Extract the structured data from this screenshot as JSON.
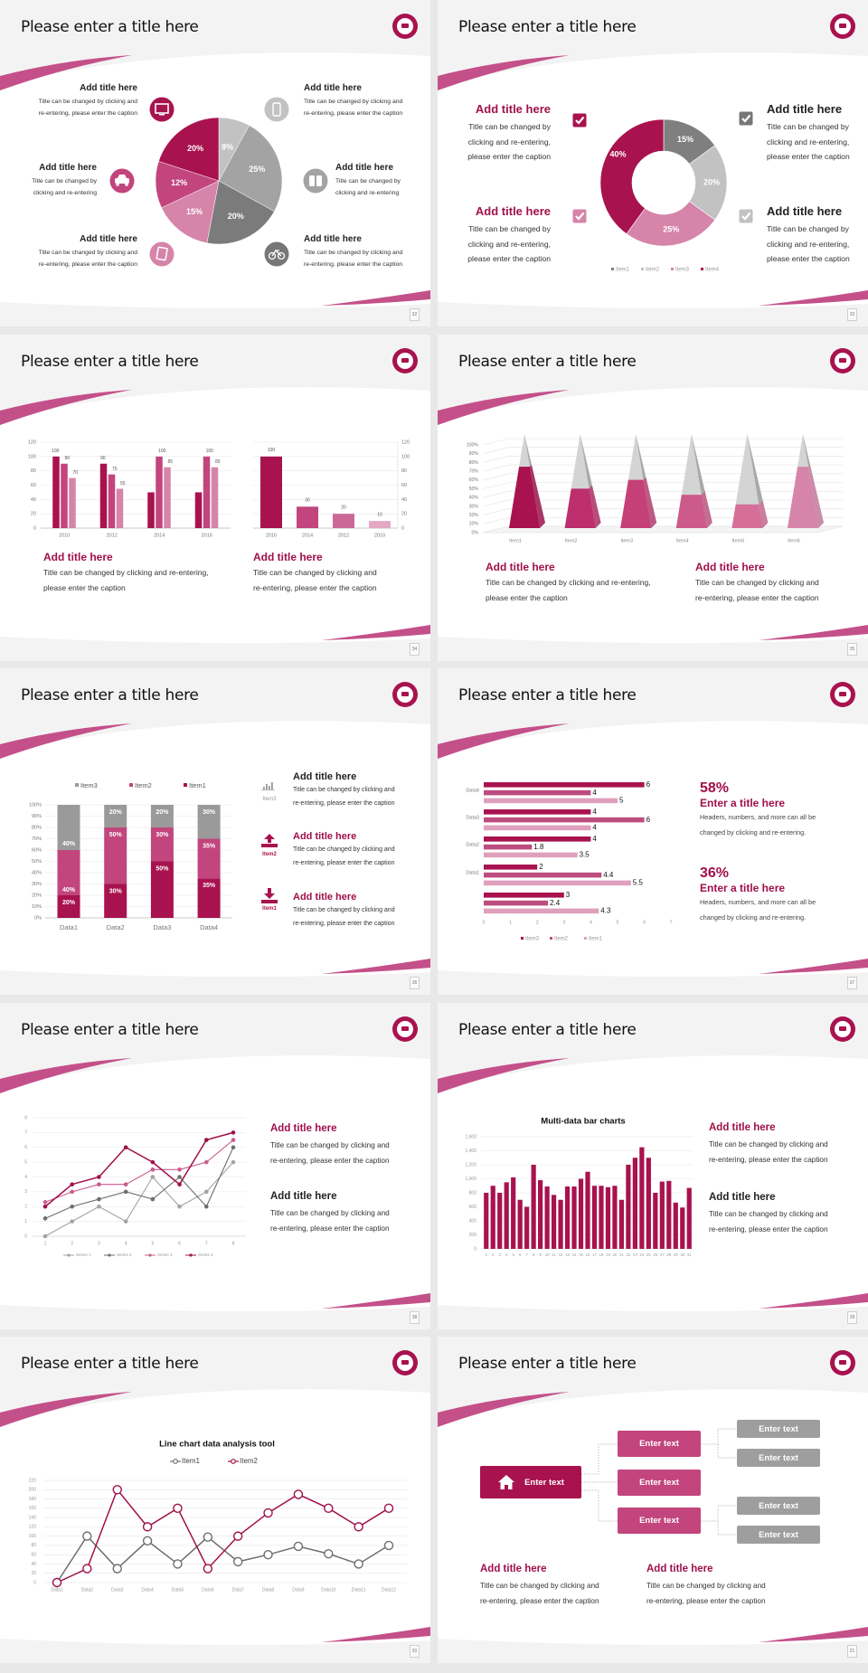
{
  "colors": {
    "dark": "#a8124f",
    "mid": "#c2457d",
    "light": "#d684aa",
    "lighter": "#e3a9c4",
    "swoosh": "#c4508a",
    "gray_dark": "#6e6e6e",
    "gray": "#8c8c8c",
    "gray_mid": "#a3a3a3",
    "gray_light": "#c2c2c2",
    "title_dark": "#222222",
    "title_accent": "#a0104a"
  },
  "slides": [
    {
      "title": "Please enter a title here",
      "page": "32",
      "icons": [
        "monitor-icon",
        "phone-icon",
        "car-icon",
        "binoculars-icon",
        "book-icon",
        "bicycle-icon"
      ],
      "blocks": [
        {
          "title": "Add title here",
          "lines": [
            "Title can be changed by clicking and",
            "re-entering, please enter the caption"
          ]
        },
        {
          "title": "Add title here",
          "lines": [
            "Title can be changed by clicking and",
            "re-entering, please enter the caption"
          ]
        },
        {
          "title": "Add title here",
          "lines": [
            "Title can be changed by",
            "clicking and re-entering"
          ]
        },
        {
          "title": "Add title here",
          "lines": [
            "Title can be changed by",
            "clicking and re-entering"
          ]
        },
        {
          "title": "Add title here",
          "lines": [
            "Title can be changed by clicking and",
            "re-entering, please enter the caption"
          ]
        },
        {
          "title": "Add title here",
          "lines": [
            "Title can be changed by clicking and",
            "re-entering, please enter the caption"
          ]
        }
      ]
    },
    {
      "title": "Please enter a title here",
      "page": "33",
      "icons": [
        "checkbox-checked-icon",
        "checkbox-checked-icon",
        "checkbox-checked-icon",
        "checkbox-checked-icon"
      ],
      "blocks": [
        {
          "title": "Add title here",
          "lines": [
            "Title can be changed by",
            "clicking and re-entering,",
            "please enter the caption"
          ]
        },
        {
          "title": "Add title here",
          "lines": [
            "Title can be changed by",
            "clicking and re-entering,",
            "please enter the caption"
          ]
        },
        {
          "title": "Add title here",
          "lines": [
            "Title can be changed by",
            "clicking and re-entering,",
            "please enter the caption"
          ]
        },
        {
          "title": "Add title here",
          "lines": [
            "Title can be changed by",
            "clicking and re-entering,",
            "please enter the caption"
          ]
        }
      ]
    },
    {
      "title": "Please enter a title here",
      "page": "34",
      "blocks": [
        {
          "title": "Add title here",
          "lines": [
            "Title can be changed by clicking and re-entering,",
            "please enter the caption"
          ]
        },
        {
          "title": "Add title here",
          "lines": [
            "Title can be changed by clicking and",
            "re-entering, please enter the caption"
          ]
        }
      ]
    },
    {
      "title": "Please enter a title here",
      "page": "35",
      "blocks": [
        {
          "title": "Add title here",
          "lines": [
            "Title can be changed by clicking and re-entering,",
            "please enter the caption"
          ]
        },
        {
          "title": "Add title here",
          "lines": [
            "Title can be changed by clicking and",
            "re-entering, please enter the caption"
          ]
        }
      ]
    },
    {
      "title": "Please enter a title here",
      "page": "36",
      "icons": [
        "bar-chart-icon",
        "upload-icon",
        "download-icon"
      ],
      "icon_labels": [
        "Item3",
        "Item2",
        "Item1"
      ],
      "blocks": [
        {
          "title": "Add title here",
          "lines": [
            "Title can be changed by clicking and",
            "re-entering, please enter the caption"
          ]
        },
        {
          "title": "Add title here",
          "lines": [
            "Title can be changed by clicking and",
            "re-entering, please enter the caption"
          ]
        },
        {
          "title": "Add title here",
          "lines": [
            "Title can be changed by clicking and",
            "re-entering, please enter the caption"
          ]
        }
      ]
    },
    {
      "title": "Please enter a title here",
      "page": "37",
      "stats": [
        {
          "value": "58%",
          "title": "Enter a title here",
          "lines": [
            "Headers, numbers, and more can all be",
            "changed by clicking and re-entering."
          ]
        },
        {
          "value": "36%",
          "title": "Enter a title here",
          "lines": [
            "Headers, numbers, and more can all be",
            "changed by clicking and re-entering."
          ]
        }
      ]
    },
    {
      "title": "Please enter a title here",
      "page": "38",
      "blocks": [
        {
          "title": "Add title here",
          "lines": [
            "Title can be changed by clicking and",
            "re-entering, please enter the caption"
          ]
        },
        {
          "title": "Add title here",
          "lines": [
            "Title can be changed by clicking and",
            "re-entering, please enter the caption"
          ]
        }
      ]
    },
    {
      "title": "Please enter a title here",
      "page": "39",
      "blocks": [
        {
          "title": "Add title here",
          "lines": [
            "Title can be changed by clicking and",
            "re-entering, please enter the caption"
          ]
        },
        {
          "title": "Add title here",
          "lines": [
            "Title can be changed by clicking and",
            "re-entering, please enter the caption"
          ]
        }
      ]
    },
    {
      "title": "Please enter a title here",
      "page": "20"
    },
    {
      "title": "Please enter a title here",
      "page": "21",
      "tree": {
        "root": "Enter text",
        "root_icon": "home-icon",
        "branches": [
          "Enter text",
          "Enter text",
          "Enter text"
        ],
        "leaves": [
          "Enter text",
          "Enter text",
          "Enter text",
          "Enter text"
        ]
      },
      "blocks": [
        {
          "title": "Add title here",
          "lines": [
            "Title can be changed by clicking and",
            "re-entering, please enter the caption"
          ]
        },
        {
          "title": "Add title here",
          "lines": [
            "Title can be changed by clicking and",
            "re-entering, please enter the caption"
          ]
        }
      ]
    }
  ],
  "chart_data": [
    {
      "type": "pie",
      "values": [
        8,
        25,
        20,
        15,
        12,
        20
      ],
      "labels": [
        "8%",
        "25%",
        "20%",
        "15%",
        "12%",
        "20%"
      ]
    },
    {
      "type": "pie",
      "donut": true,
      "categories": [
        "Item1",
        "Item2",
        "Item3",
        "Item4"
      ],
      "values": [
        15,
        20,
        25,
        40
      ],
      "labels": [
        "15%",
        "20%",
        "25%",
        "40%"
      ],
      "legend": "bottom"
    },
    {
      "type": "bar",
      "categories": [
        "2010",
        "2012",
        "2014",
        "2016"
      ],
      "series": [
        {
          "values": [
            100,
            90,
            50,
            50
          ],
          "labels": [
            "100",
            "90",
            "",
            ""
          ]
        },
        {
          "values": [
            90,
            75,
            100,
            100
          ],
          "labels": [
            "90",
            "75",
            "100",
            "100"
          ]
        },
        {
          "values": [
            70,
            55,
            85,
            85
          ],
          "labels": [
            "70",
            "55",
            "85",
            "85"
          ]
        }
      ],
      "ylim": [
        0,
        120
      ],
      "yticks": [
        "0",
        "20",
        "40",
        "60",
        "80",
        "100",
        "120"
      ],
      "grid": true
    },
    {
      "type": "bar",
      "categories": [
        "2016",
        "2014",
        "2012",
        "2010"
      ],
      "values": [
        100,
        30,
        20,
        10
      ],
      "labels": [
        "100",
        "30",
        "20",
        "10"
      ],
      "ylim": [
        0,
        120
      ],
      "yticks": [
        "0",
        "20",
        "40",
        "60",
        "80",
        "100",
        "120"
      ],
      "yaxis_side": "right",
      "grid": true
    },
    {
      "type": "bar",
      "style": "3d-pyramid",
      "categories": [
        "Item1",
        "Item2",
        "Item3",
        "Item4",
        "Item5",
        "Item6"
      ],
      "values": [
        70,
        45,
        55,
        38,
        27,
        70
      ],
      "ylim": [
        0,
        100
      ],
      "yticks": [
        "0%",
        "10%",
        "20%",
        "30%",
        "40%",
        "50%",
        "60%",
        "70%",
        "80%",
        "90%",
        "100%"
      ],
      "grid": true
    },
    {
      "type": "bar",
      "stacked": "percent",
      "categories": [
        "Data1",
        "Data2",
        "Data3",
        "Data4"
      ],
      "series": [
        {
          "name": "Item1",
          "values": [
            20,
            30,
            50,
            35
          ],
          "labels": [
            "20%",
            "30%",
            "50%",
            "35%"
          ]
        },
        {
          "name": "Item2",
          "values": [
            40,
            50,
            30,
            35
          ],
          "labels": [
            "40%",
            "50%",
            "30%",
            "35%"
          ]
        },
        {
          "name": "Item3",
          "values": [
            40,
            20,
            20,
            30
          ],
          "labels": [
            "40%",
            "20%",
            "20%",
            "30%"
          ]
        }
      ],
      "legend_order": [
        "Item3",
        "Item2",
        "Item1"
      ],
      "yticks": [
        "0%",
        "10%",
        "20%",
        "30%",
        "40%",
        "50%",
        "60%",
        "70%",
        "80%",
        "90%",
        "100%"
      ],
      "legend": "top",
      "grid": true
    },
    {
      "type": "bar",
      "orientation": "horizontal",
      "categories": [
        "Data4",
        "Data3",
        "Data2",
        "Data1",
        ""
      ],
      "series": [
        {
          "name": "Item3",
          "values": [
            6,
            4,
            4,
            2,
            3
          ],
          "labels": [
            "6",
            "4",
            "4",
            "2",
            "3"
          ]
        },
        {
          "name": "Item2",
          "values": [
            4,
            6,
            1.8,
            4.4,
            2.4
          ],
          "labels": [
            "4",
            "6",
            "1.8",
            "4.4",
            "2.4"
          ]
        },
        {
          "name": "Item1",
          "values": [
            5,
            4,
            3.5,
            5.5,
            4.3
          ],
          "labels": [
            "5",
            "4",
            "3.5",
            "5.5",
            "4.3"
          ]
        }
      ],
      "xlim": [
        0,
        7
      ],
      "xticks": [
        "0",
        "1",
        "2",
        "3",
        "4",
        "5",
        "6",
        "7"
      ],
      "legend": "bottom"
    },
    {
      "type": "line",
      "x": [
        1,
        2,
        3,
        4,
        5,
        6,
        7,
        8
      ],
      "xticks": [
        "1",
        "2",
        "3",
        "4",
        "5",
        "6",
        "7",
        "8"
      ],
      "series": [
        {
          "name": "Series 1",
          "values": [
            0,
            1,
            2,
            1,
            4,
            2,
            3,
            5
          ]
        },
        {
          "name": "Series 2",
          "values": [
            1.2,
            2,
            2.5,
            3,
            2.5,
            4,
            2,
            6
          ]
        },
        {
          "name": "Series 3",
          "values": [
            2.3,
            3,
            3.5,
            3.5,
            4.5,
            4.5,
            5,
            6.5
          ]
        },
        {
          "name": "Series 4",
          "values": [
            2,
            3.5,
            4,
            6,
            5,
            3.5,
            6.5,
            7
          ]
        }
      ],
      "ylim": [
        0,
        8
      ],
      "yticks": [
        "0",
        "1",
        "2",
        "3",
        "4",
        "5",
        "6",
        "7",
        "8"
      ],
      "legend": "bottom",
      "grid": true
    },
    {
      "type": "bar",
      "title": "Multi-data bar charts",
      "categories": [
        "1",
        "2",
        "3",
        "4",
        "5",
        "6",
        "7",
        "8",
        "9",
        "10",
        "11",
        "12",
        "13",
        "14",
        "15",
        "16",
        "17",
        "18",
        "19",
        "20",
        "21",
        "22",
        "23",
        "24",
        "25",
        "26",
        "27",
        "28",
        "29",
        "30",
        "31"
      ],
      "values": [
        800,
        900,
        800,
        950,
        1020,
        700,
        600,
        1200,
        980,
        890,
        770,
        700,
        890,
        890,
        1000,
        1100,
        900,
        900,
        880,
        900,
        700,
        1200,
        1300,
        1450,
        1300,
        800,
        960,
        970,
        660,
        590,
        870
      ],
      "ylim": [
        0,
        1600
      ],
      "yticks": [
        "0",
        "200",
        "400",
        "600",
        "800",
        "1,000",
        "1,200",
        "1,400",
        "1,600"
      ],
      "grid": true
    },
    {
      "type": "line",
      "title": "Line chart data analysis tool",
      "categories": [
        "Data1",
        "Data2",
        "Data3",
        "Data4",
        "Data5",
        "Data6",
        "Data7",
        "Data8",
        "Data9",
        "Data10",
        "Data11",
        "Data12"
      ],
      "series": [
        {
          "name": "Item1",
          "values": [
            0,
            100,
            30,
            90,
            40,
            98,
            45,
            60,
            78,
            62,
            40,
            80
          ]
        },
        {
          "name": "Item2",
          "values": [
            0,
            30,
            200,
            120,
            160,
            30,
            100,
            150,
            190,
            160,
            120,
            160
          ]
        }
      ],
      "ylim": [
        0,
        220
      ],
      "yticks": [
        "0",
        "20",
        "40",
        "60",
        "80",
        "100",
        "120",
        "140",
        "160",
        "180",
        "200",
        "220"
      ],
      "legend": "top",
      "grid": true
    }
  ]
}
